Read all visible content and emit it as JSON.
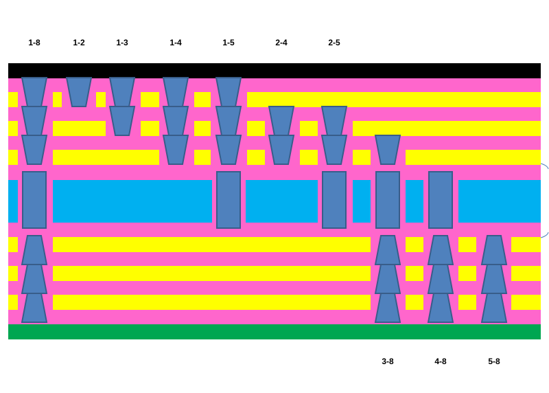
{
  "colors": {
    "top_layer": "#000000",
    "bottom_layer": "#00a651",
    "dielectric": "#ff66cc",
    "copper_layer": "#ffff00",
    "core": "#00b0f0",
    "via_fill": "#4f81bd",
    "via_stroke": "#385d8a"
  },
  "top_labels": [
    "1-8",
    "1-2",
    "1-3",
    "1-4",
    "1-5",
    "2-4",
    "2-5"
  ],
  "bottom_labels": [
    "3-8",
    "4-8",
    "5-8"
  ]
}
